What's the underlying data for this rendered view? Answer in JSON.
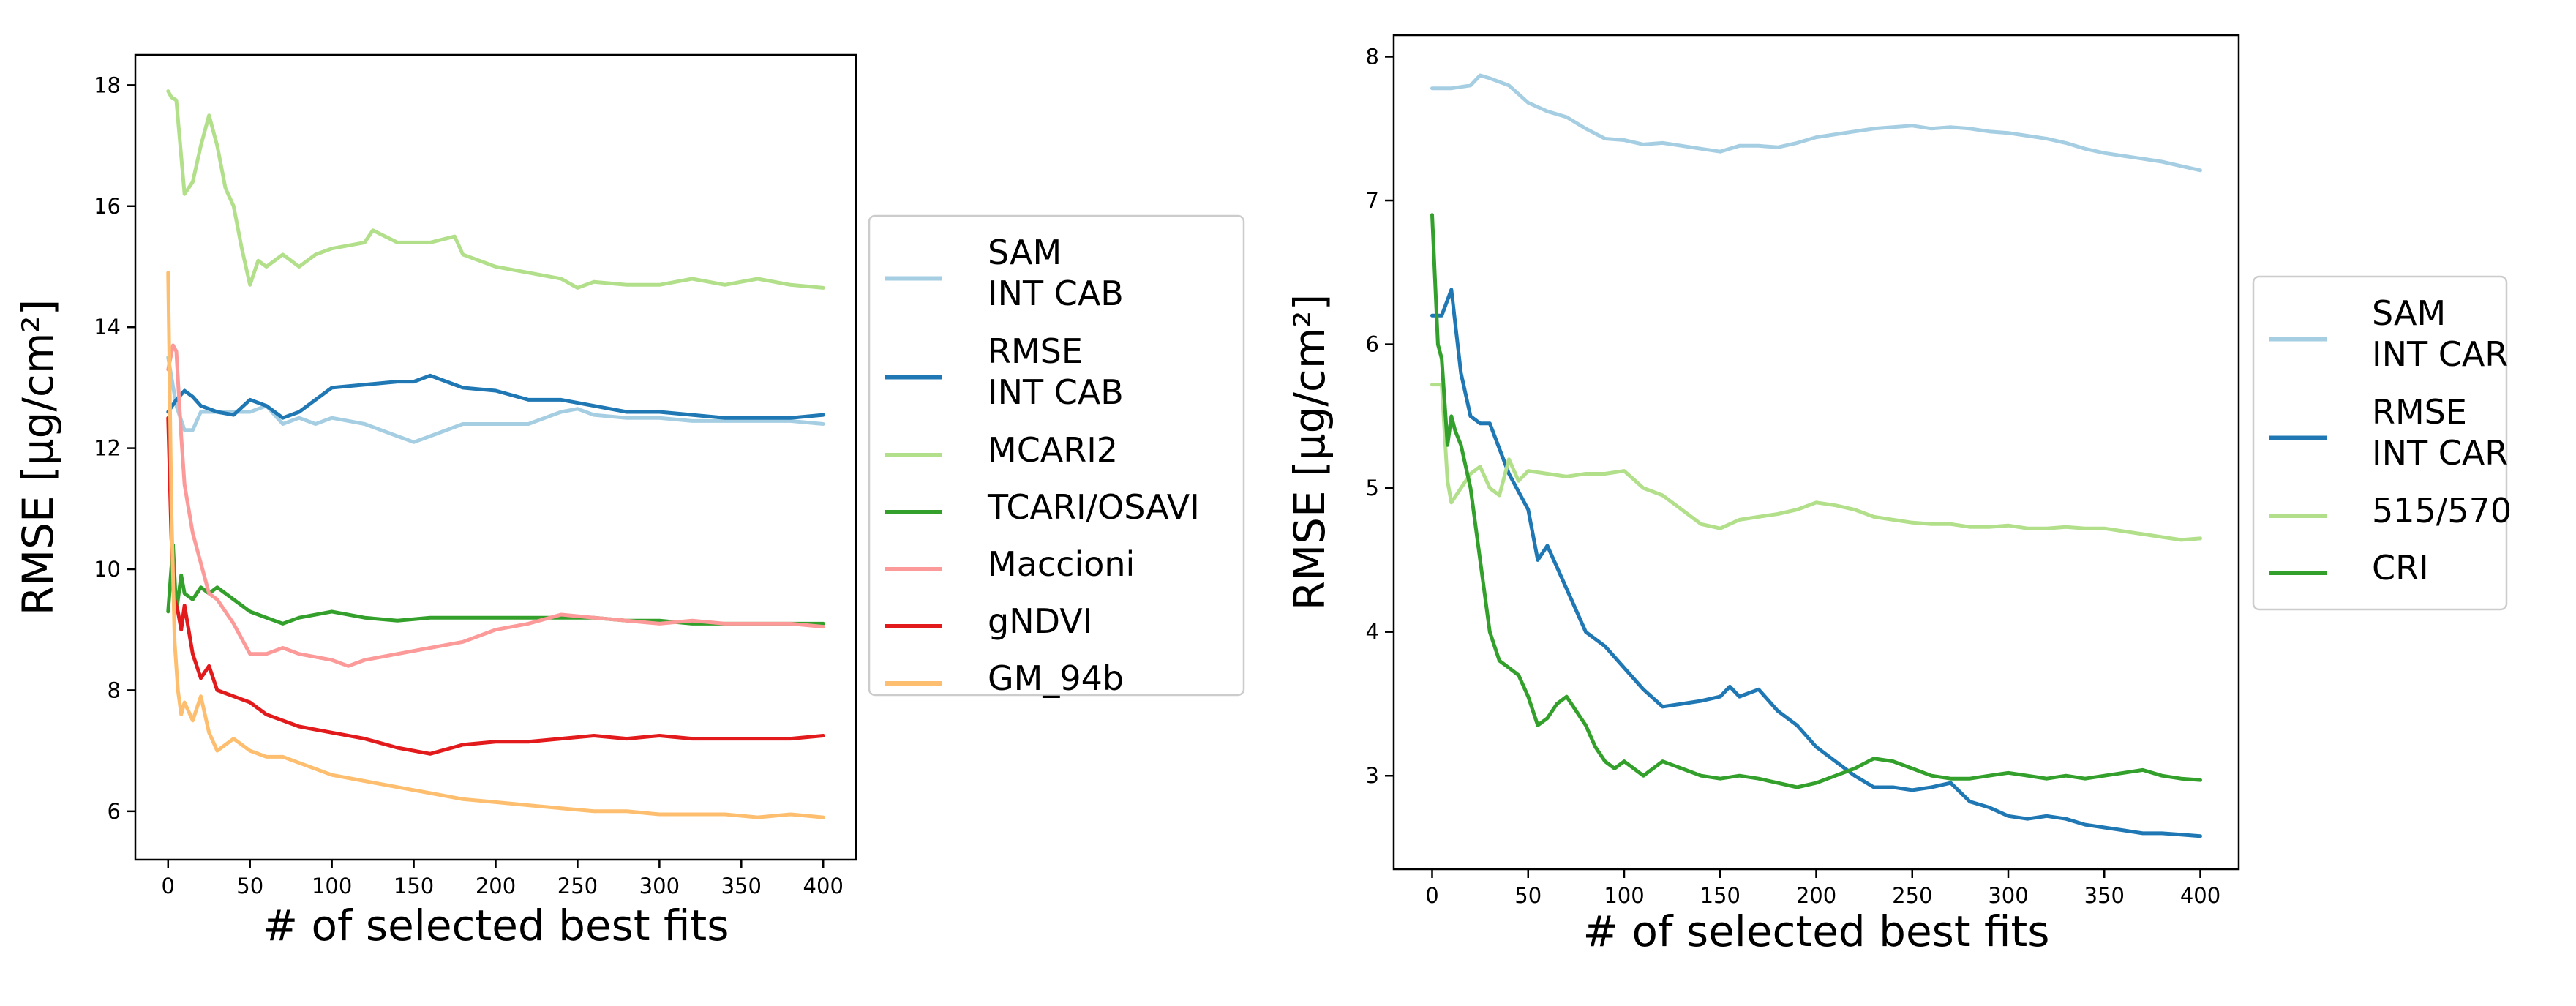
{
  "chart_data": [
    {
      "type": "line",
      "xlabel": "# of selected best fits",
      "ylabel": "RMSE [μg/cm²]",
      "xlim": [
        -20,
        420
      ],
      "ylim": [
        5.2,
        18.5
      ],
      "xticks": [
        0,
        50,
        100,
        150,
        200,
        250,
        300,
        350,
        400
      ],
      "yticks": [
        6,
        8,
        10,
        12,
        14,
        16,
        18
      ],
      "legend_position": "right",
      "series": [
        {
          "name": "SAM\nINT CAB",
          "color": "#a6cee3",
          "x": [
            0,
            5,
            10,
            15,
            20,
            30,
            40,
            50,
            60,
            70,
            80,
            90,
            100,
            120,
            140,
            150,
            160,
            180,
            200,
            220,
            240,
            250,
            260,
            280,
            300,
            320,
            340,
            360,
            380,
            400
          ],
          "y": [
            13.5,
            12.7,
            12.3,
            12.3,
            12.6,
            12.6,
            12.6,
            12.6,
            12.7,
            12.4,
            12.5,
            12.4,
            12.5,
            12.4,
            12.2,
            12.1,
            12.2,
            12.4,
            12.4,
            12.4,
            12.6,
            12.65,
            12.55,
            12.5,
            12.5,
            12.45,
            12.45,
            12.45,
            12.45,
            12.4
          ]
        },
        {
          "name": "RMSE\nINT CAB",
          "color": "#1f78b4",
          "x": [
            0,
            5,
            10,
            15,
            20,
            30,
            40,
            50,
            60,
            70,
            80,
            90,
            100,
            120,
            140,
            150,
            160,
            180,
            200,
            220,
            240,
            260,
            280,
            300,
            320,
            340,
            360,
            380,
            400
          ],
          "y": [
            12.6,
            12.8,
            12.95,
            12.85,
            12.7,
            12.6,
            12.55,
            12.8,
            12.7,
            12.5,
            12.6,
            12.8,
            13.0,
            13.05,
            13.1,
            13.1,
            13.2,
            13.0,
            12.95,
            12.8,
            12.8,
            12.7,
            12.6,
            12.6,
            12.55,
            12.5,
            12.5,
            12.5,
            12.55
          ]
        },
        {
          "name": "MCARI2",
          "color": "#b2df8a",
          "x": [
            0,
            2,
            5,
            10,
            15,
            20,
            25,
            30,
            35,
            40,
            45,
            50,
            55,
            60,
            70,
            80,
            90,
            100,
            120,
            125,
            140,
            160,
            175,
            180,
            200,
            220,
            240,
            250,
            260,
            280,
            300,
            320,
            340,
            360,
            380,
            400
          ],
          "y": [
            17.9,
            17.8,
            17.75,
            16.2,
            16.4,
            17.0,
            17.5,
            17.0,
            16.3,
            16.0,
            15.3,
            14.7,
            15.1,
            15.0,
            15.2,
            15.0,
            15.2,
            15.3,
            15.4,
            15.6,
            15.4,
            15.4,
            15.5,
            15.2,
            15.0,
            14.9,
            14.8,
            14.65,
            14.75,
            14.7,
            14.7,
            14.8,
            14.7,
            14.8,
            14.7,
            14.65
          ]
        },
        {
          "name": "TCARI/OSAVI",
          "color": "#33a02c",
          "x": [
            0,
            3,
            5,
            8,
            10,
            15,
            20,
            25,
            30,
            40,
            50,
            60,
            70,
            80,
            100,
            120,
            140,
            160,
            180,
            200,
            220,
            240,
            260,
            280,
            300,
            320,
            340,
            360,
            380,
            400
          ],
          "y": [
            9.3,
            10.4,
            9.3,
            9.9,
            9.6,
            9.5,
            9.7,
            9.6,
            9.7,
            9.5,
            9.3,
            9.2,
            9.1,
            9.2,
            9.3,
            9.2,
            9.15,
            9.2,
            9.2,
            9.2,
            9.2,
            9.2,
            9.2,
            9.15,
            9.15,
            9.1,
            9.1,
            9.1,
            9.1,
            9.1
          ]
        },
        {
          "name": "Maccioni",
          "color": "#fb9a99",
          "x": [
            0,
            3,
            5,
            8,
            10,
            15,
            20,
            25,
            30,
            40,
            50,
            60,
            70,
            80,
            100,
            110,
            120,
            140,
            160,
            180,
            200,
            220,
            240,
            260,
            280,
            300,
            320,
            340,
            360,
            380,
            400
          ],
          "y": [
            13.3,
            13.7,
            13.6,
            12.2,
            11.4,
            10.6,
            10.1,
            9.6,
            9.5,
            9.1,
            8.6,
            8.6,
            8.7,
            8.6,
            8.5,
            8.4,
            8.5,
            8.6,
            8.7,
            8.8,
            9.0,
            9.1,
            9.25,
            9.2,
            9.15,
            9.1,
            9.15,
            9.1,
            9.1,
            9.1,
            9.05
          ]
        },
        {
          "name": "gNDVI",
          "color": "#e31a1c",
          "x": [
            0,
            2,
            4,
            6,
            8,
            10,
            15,
            20,
            25,
            30,
            40,
            50,
            60,
            70,
            80,
            100,
            120,
            140,
            160,
            180,
            200,
            220,
            240,
            260,
            280,
            300,
            320,
            340,
            360,
            380,
            400
          ],
          "y": [
            12.5,
            10.5,
            9.5,
            9.3,
            9.0,
            9.4,
            8.6,
            8.2,
            8.4,
            8.0,
            7.9,
            7.8,
            7.6,
            7.5,
            7.4,
            7.3,
            7.2,
            7.05,
            6.95,
            7.1,
            7.15,
            7.15,
            7.2,
            7.25,
            7.2,
            7.25,
            7.2,
            7.2,
            7.2,
            7.2,
            7.25
          ]
        },
        {
          "name": "GM_94b",
          "color": "#fdbf6f",
          "x": [
            0,
            2,
            4,
            6,
            8,
            10,
            15,
            20,
            25,
            30,
            40,
            50,
            60,
            70,
            80,
            100,
            120,
            140,
            160,
            180,
            200,
            220,
            240,
            260,
            280,
            300,
            320,
            340,
            360,
            380,
            400
          ],
          "y": [
            14.9,
            11.0,
            8.8,
            8.0,
            7.6,
            7.8,
            7.5,
            7.9,
            7.3,
            7.0,
            7.2,
            7.0,
            6.9,
            6.9,
            6.8,
            6.6,
            6.5,
            6.4,
            6.3,
            6.2,
            6.15,
            6.1,
            6.05,
            6.0,
            6.0,
            5.95,
            5.95,
            5.95,
            5.9,
            5.95,
            5.9
          ]
        }
      ]
    },
    {
      "type": "line",
      "xlabel": "# of selected best fits",
      "ylabel": "RMSE [μg/cm²]",
      "xlim": [
        -20,
        420
      ],
      "ylim": [
        2.35,
        8.15
      ],
      "xticks": [
        0,
        50,
        100,
        150,
        200,
        250,
        300,
        350,
        400
      ],
      "yticks": [
        3,
        4,
        5,
        6,
        7,
        8
      ],
      "legend_position": "right",
      "series": [
        {
          "name": "SAM\nINT CAR",
          "color": "#a6cee3",
          "x": [
            0,
            10,
            20,
            25,
            30,
            40,
            50,
            60,
            70,
            80,
            90,
            100,
            110,
            120,
            130,
            140,
            150,
            160,
            170,
            180,
            190,
            200,
            210,
            220,
            230,
            240,
            250,
            260,
            270,
            280,
            290,
            300,
            310,
            320,
            330,
            340,
            350,
            360,
            370,
            380,
            390,
            400
          ],
          "y": [
            7.78,
            7.78,
            7.8,
            7.87,
            7.85,
            7.8,
            7.68,
            7.62,
            7.58,
            7.5,
            7.43,
            7.42,
            7.39,
            7.4,
            7.38,
            7.36,
            7.34,
            7.38,
            7.38,
            7.37,
            7.4,
            7.44,
            7.46,
            7.48,
            7.5,
            7.51,
            7.52,
            7.5,
            7.51,
            7.5,
            7.48,
            7.47,
            7.45,
            7.43,
            7.4,
            7.36,
            7.33,
            7.31,
            7.29,
            7.27,
            7.24,
            7.21
          ]
        },
        {
          "name": "RMSE\nINT CAR",
          "color": "#1f78b4",
          "x": [
            0,
            5,
            10,
            15,
            20,
            25,
            30,
            40,
            50,
            55,
            60,
            70,
            80,
            90,
            100,
            110,
            120,
            130,
            140,
            150,
            155,
            160,
            170,
            180,
            190,
            200,
            210,
            220,
            230,
            240,
            250,
            260,
            270,
            280,
            290,
            300,
            310,
            320,
            330,
            340,
            350,
            360,
            370,
            380,
            390,
            400
          ],
          "y": [
            6.2,
            6.2,
            6.38,
            5.8,
            5.5,
            5.45,
            5.45,
            5.1,
            4.85,
            4.5,
            4.6,
            4.3,
            4.0,
            3.9,
            3.75,
            3.6,
            3.48,
            3.5,
            3.52,
            3.55,
            3.62,
            3.55,
            3.6,
            3.45,
            3.35,
            3.2,
            3.1,
            3.0,
            2.92,
            2.92,
            2.9,
            2.92,
            2.95,
            2.82,
            2.78,
            2.72,
            2.7,
            2.72,
            2.7,
            2.66,
            2.64,
            2.62,
            2.6,
            2.6,
            2.59,
            2.58
          ]
        },
        {
          "name": "515/570",
          "color": "#b2df8a",
          "x": [
            0,
            5,
            8,
            10,
            15,
            20,
            25,
            30,
            35,
            40,
            45,
            50,
            60,
            70,
            80,
            90,
            100,
            110,
            120,
            130,
            140,
            150,
            160,
            170,
            180,
            190,
            200,
            210,
            220,
            230,
            240,
            250,
            260,
            270,
            280,
            290,
            300,
            310,
            320,
            330,
            340,
            350,
            360,
            370,
            380,
            390,
            400
          ],
          "y": [
            5.72,
            5.72,
            5.05,
            4.9,
            5.0,
            5.1,
            5.15,
            5.0,
            4.95,
            5.2,
            5.05,
            5.12,
            5.1,
            5.08,
            5.1,
            5.1,
            5.12,
            5.0,
            4.95,
            4.85,
            4.75,
            4.72,
            4.78,
            4.8,
            4.82,
            4.85,
            4.9,
            4.88,
            4.85,
            4.8,
            4.78,
            4.76,
            4.75,
            4.75,
            4.73,
            4.73,
            4.74,
            4.72,
            4.72,
            4.73,
            4.72,
            4.72,
            4.7,
            4.68,
            4.66,
            4.64,
            4.65
          ]
        },
        {
          "name": "CRI",
          "color": "#33a02c",
          "x": [
            0,
            3,
            5,
            8,
            10,
            12,
            15,
            20,
            25,
            30,
            35,
            40,
            45,
            50,
            55,
            60,
            65,
            70,
            75,
            80,
            85,
            90,
            95,
            100,
            105,
            110,
            115,
            120,
            130,
            140,
            150,
            160,
            170,
            180,
            190,
            200,
            210,
            220,
            230,
            240,
            250,
            260,
            270,
            280,
            290,
            300,
            310,
            320,
            330,
            340,
            350,
            360,
            370,
            380,
            390,
            400
          ],
          "y": [
            6.9,
            6.0,
            5.9,
            5.3,
            5.5,
            5.4,
            5.3,
            5.0,
            4.5,
            4.0,
            3.8,
            3.75,
            3.7,
            3.55,
            3.35,
            3.4,
            3.5,
            3.55,
            3.45,
            3.35,
            3.2,
            3.1,
            3.05,
            3.1,
            3.05,
            3.0,
            3.05,
            3.1,
            3.05,
            3.0,
            2.98,
            3.0,
            2.98,
            2.95,
            2.92,
            2.95,
            3.0,
            3.05,
            3.12,
            3.1,
            3.05,
            3.0,
            2.98,
            2.98,
            3.0,
            3.02,
            3.0,
            2.98,
            3.0,
            2.98,
            3.0,
            3.02,
            3.04,
            3.0,
            2.98,
            2.97
          ]
        }
      ]
    }
  ]
}
